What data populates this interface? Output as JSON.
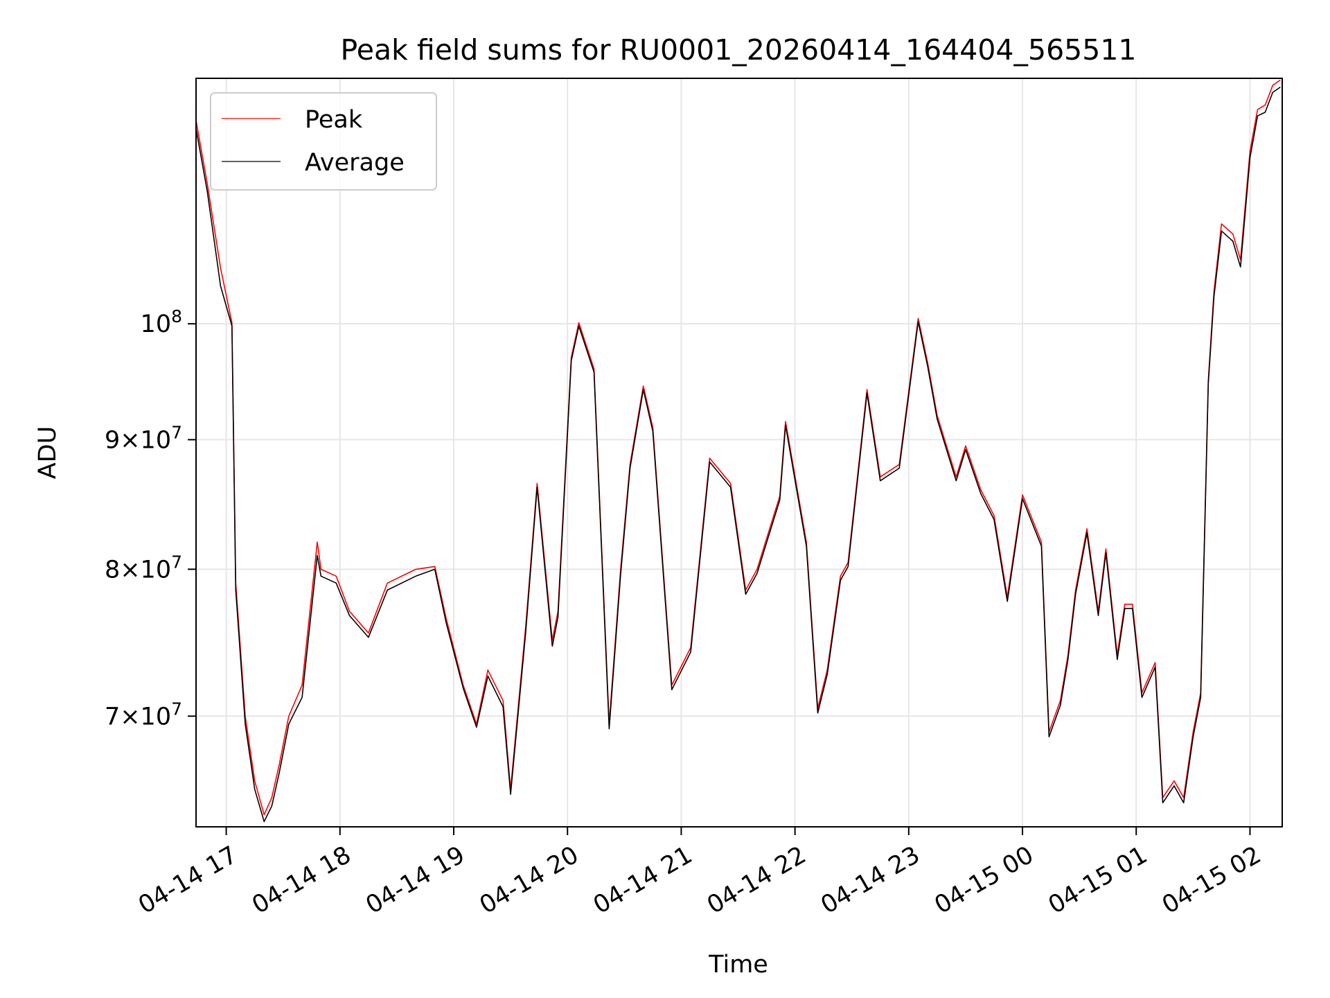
{
  "chart_data": {
    "type": "line",
    "title": "Peak field sums for RU0001_20260414_164404_565511",
    "xlabel": "Time",
    "ylabel": "ADU",
    "y_scale": "log",
    "xlim": [
      "2026-04-14 16:44:04",
      "2026-04-15 02:17:00"
    ],
    "ylim": [
      63300000,
      125000000
    ],
    "x_ticks": [
      "04-14 17",
      "04-14 18",
      "04-14 19",
      "04-14 20",
      "04-14 21",
      "04-14 22",
      "04-14 23",
      "04-15 00",
      "04-15 01",
      "04-15 02"
    ],
    "y_ticks": [
      {
        "value": 70000000,
        "mantissa": "7",
        "exponent": "7"
      },
      {
        "value": 80000000,
        "mantissa": "8",
        "exponent": "7"
      },
      {
        "value": 90000000,
        "mantissa": "9",
        "exponent": "7"
      },
      {
        "value": 100000000,
        "mantissa": "",
        "exponent": "8"
      }
    ],
    "grid": true,
    "legend_position": "top-left",
    "x": [
      "2026-04-14 16:44",
      "2026-04-14 16:50",
      "2026-04-14 16:57",
      "2026-04-14 17:03",
      "2026-04-14 17:05",
      "2026-04-14 17:10",
      "2026-04-14 17:15",
      "2026-04-14 17:20",
      "2026-04-14 17:24",
      "2026-04-14 17:28",
      "2026-04-14 17:33",
      "2026-04-14 17:40",
      "2026-04-14 17:48",
      "2026-04-14 17:50",
      "2026-04-14 17:58",
      "2026-04-14 18:05",
      "2026-04-14 18:15",
      "2026-04-14 18:25",
      "2026-04-14 18:40",
      "2026-04-14 18:50",
      "2026-04-14 18:56",
      "2026-04-14 19:05",
      "2026-04-14 19:12",
      "2026-04-14 19:18",
      "2026-04-14 19:26",
      "2026-04-14 19:30",
      "2026-04-14 19:38",
      "2026-04-14 19:44",
      "2026-04-14 19:52",
      "2026-04-14 19:55",
      "2026-04-14 20:02",
      "2026-04-14 20:06",
      "2026-04-14 20:14",
      "2026-04-14 20:22",
      "2026-04-14 20:28",
      "2026-04-14 20:33",
      "2026-04-14 20:40",
      "2026-04-14 20:45",
      "2026-04-14 20:55",
      "2026-04-14 21:05",
      "2026-04-14 21:15",
      "2026-04-14 21:26",
      "2026-04-14 21:34",
      "2026-04-14 21:40",
      "2026-04-14 21:52",
      "2026-04-14 21:55",
      "2026-04-14 22:06",
      "2026-04-14 22:12",
      "2026-04-14 22:17",
      "2026-04-14 22:24",
      "2026-04-14 22:28",
      "2026-04-14 22:38",
      "2026-04-14 22:45",
      "2026-04-14 22:55",
      "2026-04-14 23:05",
      "2026-04-14 23:10",
      "2026-04-14 23:15",
      "2026-04-14 23:25",
      "2026-04-14 23:30",
      "2026-04-14 23:38",
      "2026-04-14 23:45",
      "2026-04-14 23:52",
      "2026-04-15 00:00",
      "2026-04-15 00:10",
      "2026-04-15 00:14",
      "2026-04-15 00:20",
      "2026-04-15 00:24",
      "2026-04-15 00:28",
      "2026-04-15 00:34",
      "2026-04-15 00:40",
      "2026-04-15 00:44",
      "2026-04-15 00:50",
      "2026-04-15 00:54",
      "2026-04-15 00:58",
      "2026-04-15 01:03",
      "2026-04-15 01:10",
      "2026-04-15 01:14",
      "2026-04-15 01:20",
      "2026-04-15 01:25",
      "2026-04-15 01:30",
      "2026-04-15 01:34",
      "2026-04-15 01:38",
      "2026-04-15 01:41",
      "2026-04-15 01:45",
      "2026-04-15 01:51",
      "2026-04-15 01:55",
      "2026-04-15 02:00",
      "2026-04-15 02:04",
      "2026-04-15 02:08",
      "2026-04-15 02:12",
      "2026-04-15 02:16"
    ],
    "series": [
      {
        "name": "Peak",
        "color": "#ff0000",
        "values": [
          120400000,
          113600000,
          105200000,
          100100000,
          79000000,
          70000000,
          66000000,
          64000000,
          65000000,
          67000000,
          70000000,
          72000000,
          82000000,
          80000000,
          79500000,
          77000000,
          75500000,
          79000000,
          80000000,
          80200000,
          76500000,
          72000000,
          69500000,
          73000000,
          71000000,
          65500000,
          76000000,
          86500000,
          75000000,
          77000000,
          97000000,
          100100000,
          96000000,
          69500000,
          80000000,
          88000000,
          94500000,
          91000000,
          72000000,
          74500000,
          88500000,
          86500000,
          78500000,
          80000000,
          85500000,
          91500000,
          82000000,
          70500000,
          73000000,
          79500000,
          80500000,
          94200000,
          87000000,
          88000000,
          100500000,
          96500000,
          92000000,
          87000000,
          89500000,
          86000000,
          84000000,
          78000000,
          85600000,
          82000000,
          69000000,
          71000000,
          74000000,
          78500000,
          83000000,
          77000000,
          81500000,
          74000000,
          77500000,
          77500000,
          71500000,
          73500000,
          65000000,
          66000000,
          65000000,
          69000000,
          71500000,
          95000000,
          103000000,
          109500000,
          108500000,
          106000000,
          117000000,
          121500000,
          122000000,
          124200000,
          124800000
        ]
      },
      {
        "name": "Average",
        "color": "#000000",
        "values": [
          119500000,
          112800000,
          103500000,
          99800000,
          78500000,
          69500000,
          65500000,
          63600000,
          64500000,
          66500000,
          69500000,
          71200000,
          81000000,
          79500000,
          79000000,
          76700000,
          75200000,
          78500000,
          79500000,
          80000000,
          76200000,
          71800000,
          69300000,
          72600000,
          70600000,
          65200000,
          75600000,
          86200000,
          74600000,
          76600000,
          96700000,
          99800000,
          95700000,
          69200000,
          79600000,
          87700000,
          94200000,
          90700000,
          71700000,
          74200000,
          88200000,
          86200000,
          78200000,
          79700000,
          85200000,
          91200000,
          81700000,
          70200000,
          72700000,
          79200000,
          80200000,
          93900000,
          86700000,
          87700000,
          100200000,
          96200000,
          91700000,
          86700000,
          89200000,
          85700000,
          83700000,
          77700000,
          85300000,
          81700000,
          68700000,
          70700000,
          73700000,
          78200000,
          82700000,
          76700000,
          81200000,
          73700000,
          77200000,
          77200000,
          71200000,
          73200000,
          64700000,
          65700000,
          64700000,
          68700000,
          71200000,
          94700000,
          102500000,
          108800000,
          107800000,
          105300000,
          116300000,
          120800000,
          121200000,
          123400000,
          124000000
        ]
      }
    ]
  }
}
